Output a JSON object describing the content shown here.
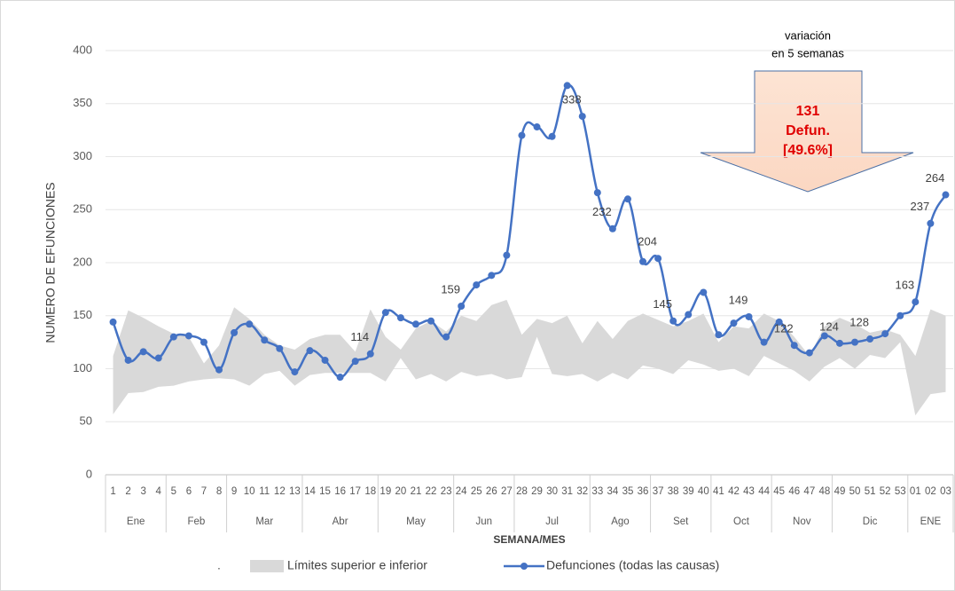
{
  "chart_data": {
    "type": "line",
    "yaxis_label": "NUMERO DE EFUNCIONES",
    "xaxis_label": "SEMANA/MES",
    "categories": [
      "1",
      "2",
      "3",
      "4",
      "5",
      "6",
      "7",
      "8",
      "9",
      "10",
      "11",
      "12",
      "13",
      "14",
      "15",
      "16",
      "17",
      "18",
      "19",
      "20",
      "21",
      "22",
      "23",
      "24",
      "25",
      "26",
      "27",
      "28",
      "29",
      "30",
      "31",
      "32",
      "33",
      "34",
      "35",
      "36",
      "37",
      "38",
      "39",
      "40",
      "41",
      "42",
      "43",
      "44",
      "45",
      "46",
      "47",
      "48",
      "49",
      "50",
      "51",
      "52",
      "53",
      "01",
      "02",
      "03"
    ],
    "month_groups": [
      {
        "label": "Ene",
        "count": 4
      },
      {
        "label": "Feb",
        "count": 4
      },
      {
        "label": "Mar",
        "count": 5
      },
      {
        "label": "Abr",
        "count": 5
      },
      {
        "label": "May",
        "count": 5
      },
      {
        "label": "Jun",
        "count": 4
      },
      {
        "label": "Jul",
        "count": 5
      },
      {
        "label": "Ago",
        "count": 4
      },
      {
        "label": "Set",
        "count": 4
      },
      {
        "label": "Oct",
        "count": 4
      },
      {
        "label": "Nov",
        "count": 4
      },
      {
        "label": "Dic",
        "count": 5
      },
      {
        "label": "ENE",
        "count": 3
      }
    ],
    "ylim": [
      0,
      400
    ],
    "yticks": [
      0,
      50,
      100,
      150,
      200,
      250,
      300,
      350,
      400
    ],
    "grid": true,
    "band": {
      "name": "Límites superior e inferior",
      "color": "#d9d9d9",
      "upper": [
        112,
        155,
        148,
        140,
        133,
        130,
        105,
        122,
        158,
        147,
        132,
        122,
        118,
        128,
        132,
        132,
        116,
        156,
        130,
        118,
        138,
        145,
        135,
        150,
        145,
        160,
        165,
        132,
        147,
        143,
        150,
        124,
        145,
        128,
        145,
        152,
        146,
        140,
        145,
        152,
        125,
        140,
        138,
        152,
        145,
        130,
        112,
        140,
        148,
        142,
        134,
        137,
        132,
        112,
        156,
        150
      ],
      "lower": [
        57,
        77,
        78,
        83,
        84,
        88,
        90,
        91,
        90,
        84,
        95,
        98,
        84,
        94,
        96,
        96,
        96,
        96,
        88,
        110,
        90,
        95,
        88,
        97,
        93,
        95,
        90,
        92,
        130,
        95,
        93,
        95,
        88,
        96,
        90,
        103,
        100,
        95,
        108,
        104,
        98,
        100,
        93,
        112,
        105,
        98,
        88,
        102,
        110,
        100,
        113,
        110,
        125,
        56,
        76,
        78
      ]
    },
    "series": [
      {
        "name": "Defunciones (todas las causas)",
        "color": "#4472c4",
        "values": [
          144,
          108,
          116,
          110,
          130,
          131,
          125,
          99,
          134,
          142,
          127,
          119,
          97,
          117,
          108,
          92,
          107,
          114,
          153,
          148,
          142,
          145,
          130,
          159,
          179,
          188,
          207,
          320,
          328,
          319,
          367,
          338,
          266,
          232,
          260,
          201,
          204,
          145,
          151,
          172,
          132,
          143,
          149,
          125,
          144,
          122,
          115,
          131,
          124,
          125,
          128,
          133,
          150,
          163,
          237,
          264
        ],
        "value_labels": [
          null,
          null,
          null,
          null,
          null,
          null,
          null,
          null,
          null,
          null,
          null,
          null,
          null,
          null,
          null,
          null,
          null,
          114,
          null,
          null,
          null,
          null,
          null,
          159,
          null,
          null,
          null,
          null,
          null,
          null,
          null,
          338,
          null,
          232,
          null,
          null,
          204,
          145,
          null,
          null,
          null,
          null,
          149,
          null,
          null,
          122,
          null,
          null,
          124,
          null,
          128,
          null,
          null,
          163,
          237,
          264
        ]
      }
    ],
    "annotation": {
      "heading": [
        "variación",
        "en 5 semanas"
      ],
      "body": [
        "131",
        "Defun.",
        "[49.6%]"
      ]
    },
    "legend_prefix": "."
  }
}
